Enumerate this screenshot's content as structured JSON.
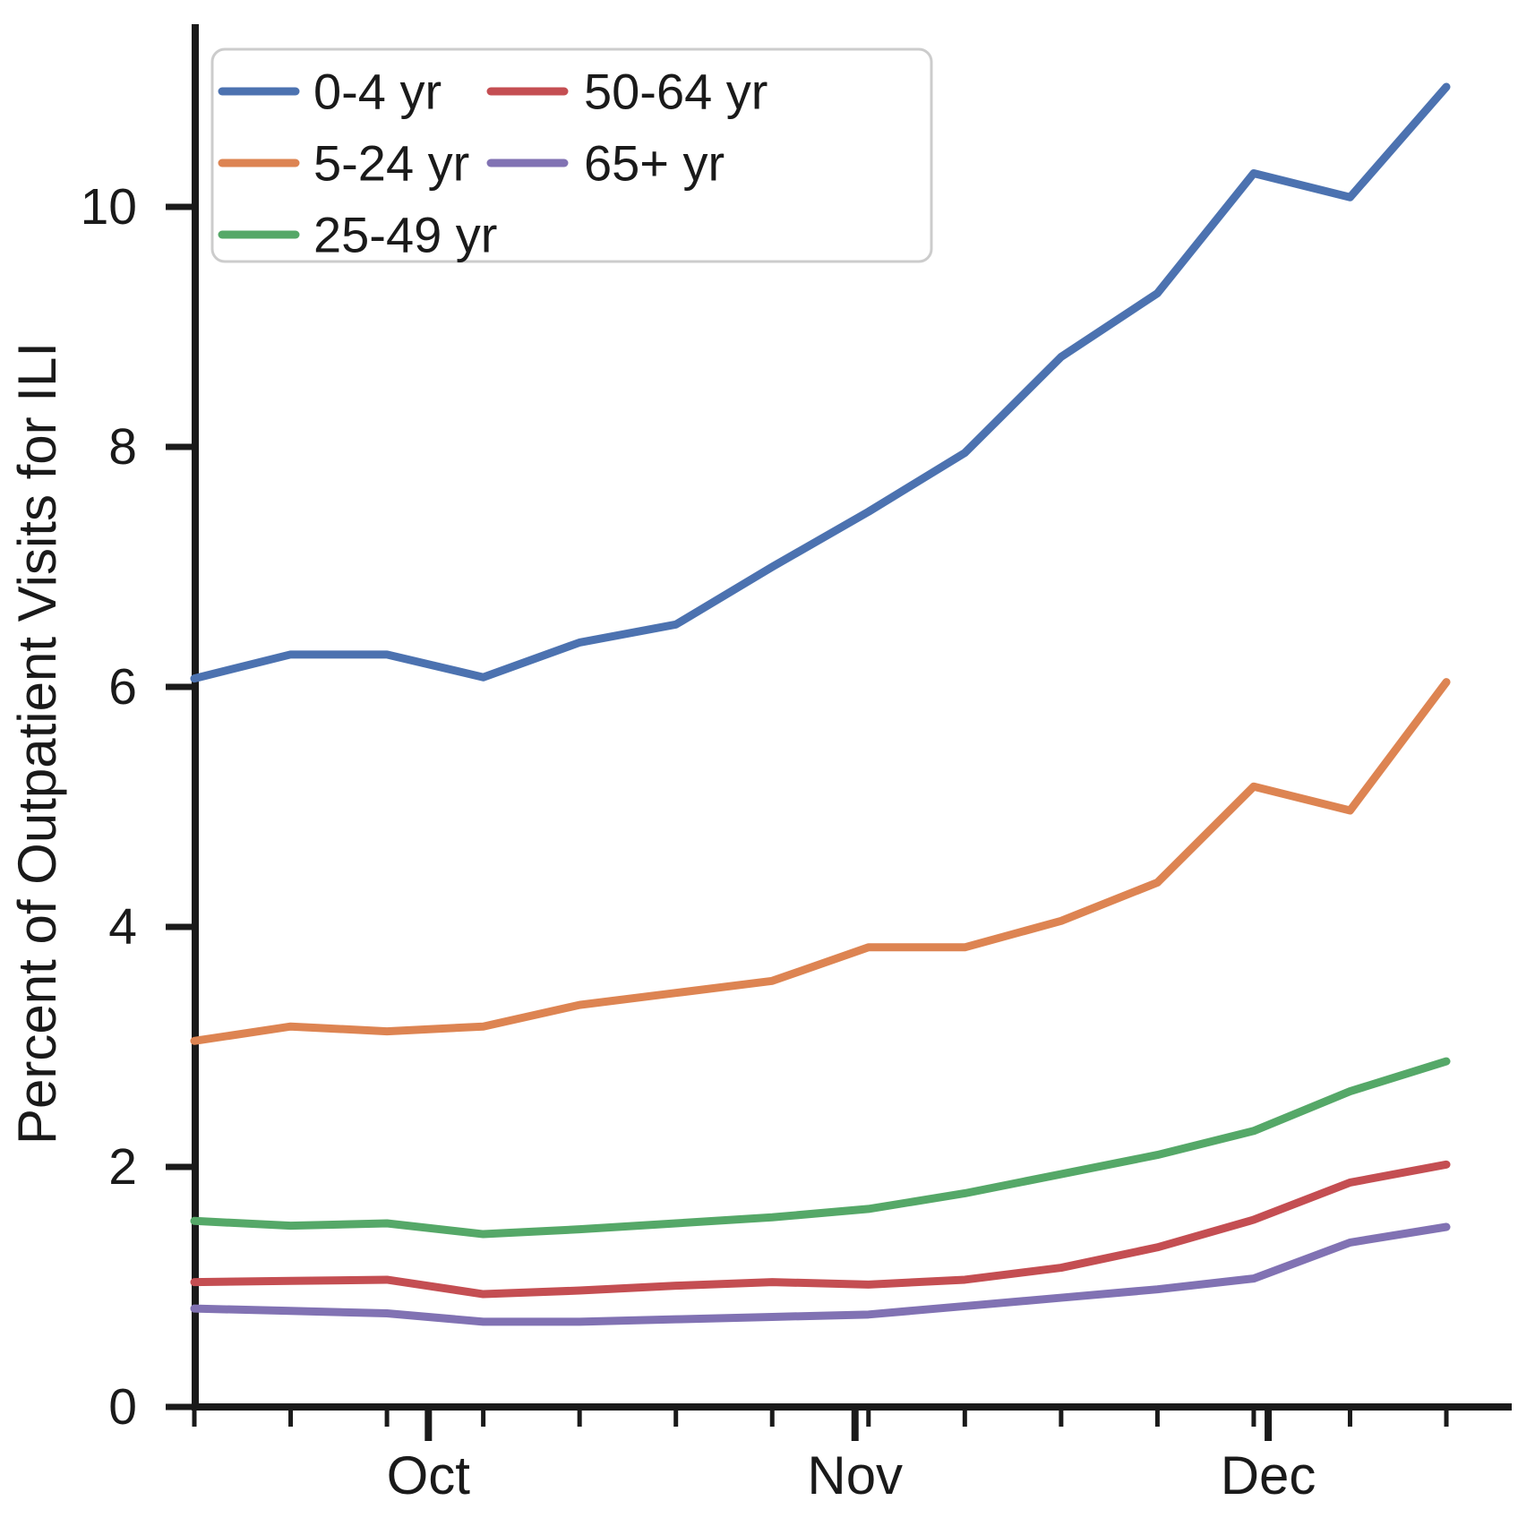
{
  "chart_data": {
    "type": "line",
    "title": "",
    "xlabel": "",
    "ylabel": "Percent of Outpatient Visits for ILI",
    "ylim": [
      0,
      11.52
    ],
    "yticks": [
      0,
      2,
      4,
      6,
      8,
      10
    ],
    "ytick_labels": [
      "0",
      "2",
      "4",
      "6",
      "8",
      "10"
    ],
    "grid": false,
    "n_points": 14,
    "x_unit": "week",
    "month_ticks": [
      {
        "label": "Oct",
        "week": 2.43
      },
      {
        "label": "Nov",
        "week": 6.86
      },
      {
        "label": "Dec",
        "week": 11.15
      }
    ],
    "legend": {
      "position": "upper left",
      "columns": 2,
      "entries": [
        "0-4 yr",
        "5-24 yr",
        "25-49 yr",
        "50-64 yr",
        "65+ yr"
      ]
    },
    "series": [
      {
        "name": "0-4 yr",
        "color": "#4C72B0",
        "values": [
          6.07,
          6.27,
          6.27,
          6.08,
          6.37,
          6.52,
          7.0,
          7.46,
          7.95,
          8.75,
          9.28,
          10.28,
          10.08,
          11.0
        ]
      },
      {
        "name": "5-24 yr",
        "color": "#DD8452",
        "values": [
          3.05,
          3.17,
          3.13,
          3.17,
          3.35,
          3.45,
          3.55,
          3.83,
          3.83,
          4.05,
          4.37,
          5.17,
          4.97,
          6.04
        ]
      },
      {
        "name": "25-49 yr",
        "color": "#55A868",
        "values": [
          1.55,
          1.51,
          1.53,
          1.44,
          1.48,
          1.53,
          1.58,
          1.65,
          1.78,
          1.94,
          2.1,
          2.3,
          2.63,
          2.88
        ]
      },
      {
        "name": "50-64 yr",
        "color": "#C44E52",
        "values": [
          1.04,
          1.05,
          1.06,
          0.94,
          0.97,
          1.01,
          1.04,
          1.02,
          1.06,
          1.16,
          1.33,
          1.56,
          1.87,
          2.02
        ]
      },
      {
        "name": "65+ yr",
        "color": "#8172B3",
        "values": [
          0.82,
          0.8,
          0.78,
          0.71,
          0.71,
          0.73,
          0.75,
          0.77,
          0.84,
          0.91,
          0.98,
          1.07,
          1.37,
          1.5
        ]
      }
    ],
    "axis_color": "#1a1a1a"
  }
}
